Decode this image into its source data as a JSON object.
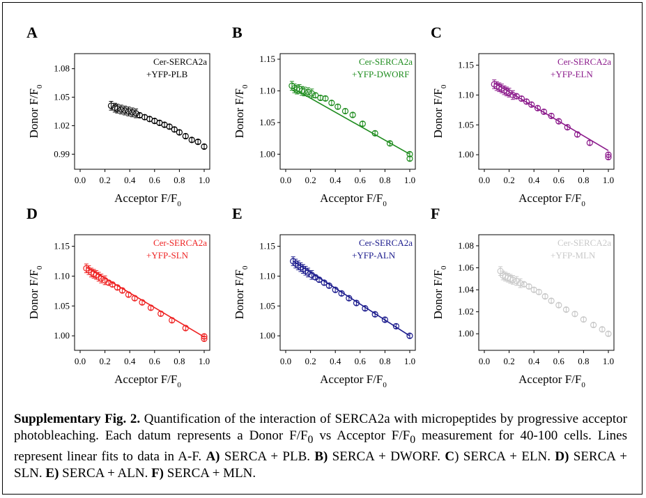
{
  "figure": {
    "caption": {
      "label": "Supplementary Fig. 2.",
      "text": " Quantification of the interaction of SERCA2a with micropeptides by progressive acceptor photobleaching. Each datum represents a Donor F/F",
      "sub0": "0",
      "text2": " vs Acceptor F/F",
      "sub1": "0",
      "text3": " measurement for 40-100 cells. Lines represent linear fits to data in A-F. ",
      "parts": [
        {
          "label": "A)",
          "text": " SERCA + PLB. "
        },
        {
          "label": "B)",
          "text": " SERCA + DWORF. "
        },
        {
          "label": "C",
          "text": ") SERCA + ELN. "
        },
        {
          "label": "D)",
          "text": " SERCA + SLN. "
        },
        {
          "label": "E)",
          "text": " SERCA + ALN. "
        },
        {
          "label": "F)",
          "text": " SERCA + MLN."
        }
      ]
    }
  },
  "chart_data": [
    {
      "panel": "A",
      "type": "scatter",
      "color": "#000000",
      "fit": false,
      "legend": [
        "Cer-SERCA2a",
        "+YFP-PLB"
      ],
      "xlabel": "Acceptor F/F",
      "xlabel_sub": "0",
      "ylabel": "Donor F/F",
      "ylabel_sub": "0",
      "xlim": [
        0.0,
        1.0
      ],
      "ylim": [
        0.98,
        1.09
      ],
      "xticks": [
        "0.0",
        "0.2",
        "0.4",
        "0.6",
        "0.8",
        "1.0"
      ],
      "yticks": [
        "0.99",
        "1.02",
        "1.05",
        "1.08"
      ],
      "ytick_values": [
        0.99,
        1.02,
        1.05,
        1.08
      ],
      "points": {
        "x": [
          0.25,
          0.28,
          0.3,
          0.33,
          0.36,
          0.39,
          0.42,
          0.45,
          0.48,
          0.52,
          0.56,
          0.6,
          0.64,
          0.68,
          0.72,
          0.76,
          0.8,
          0.85,
          0.9,
          0.95,
          1.0
        ],
        "y": [
          1.041,
          1.039,
          1.038,
          1.037,
          1.036,
          1.035,
          1.034,
          1.033,
          1.031,
          1.029,
          1.027,
          1.025,
          1.023,
          1.021,
          1.019,
          1.016,
          1.013,
          1.009,
          1.005,
          1.003,
          0.998
        ]
      }
    },
    {
      "panel": "B",
      "type": "scatter",
      "color": "#1e8c1e",
      "fit": true,
      "legend": [
        "Cer-SERCA2a",
        "+YFP-DWORF"
      ],
      "xlabel": "Acceptor F/F",
      "xlabel_sub": "0",
      "ylabel": "Donor F/F",
      "ylabel_sub": "0",
      "xlim": [
        0.0,
        1.0
      ],
      "ylim": [
        0.985,
        1.15
      ],
      "xticks": [
        "0.0",
        "0.2",
        "0.4",
        "0.6",
        "0.8",
        "1.0"
      ],
      "yticks": [
        "1.00",
        "1.05",
        "1.10",
        "1.15"
      ],
      "ytick_values": [
        1.0,
        1.05,
        1.1,
        1.15
      ],
      "fit_line": {
        "x": [
          0.05,
          1.0
        ],
        "y": [
          1.105,
          1.0
        ]
      },
      "points": {
        "x": [
          0.05,
          0.07,
          0.09,
          0.11,
          0.13,
          0.15,
          0.18,
          0.21,
          0.24,
          0.28,
          0.32,
          0.37,
          0.42,
          0.48,
          0.54,
          0.62,
          0.72,
          0.84,
          1.0,
          1.0
        ],
        "y": [
          1.108,
          1.104,
          1.102,
          1.103,
          1.1,
          1.099,
          1.098,
          1.096,
          1.093,
          1.089,
          1.088,
          1.081,
          1.075,
          1.068,
          1.062,
          1.048,
          1.033,
          1.017,
          1.0,
          0.993
        ]
      }
    },
    {
      "panel": "C",
      "type": "scatter",
      "color": "#8b1a8b",
      "fit": true,
      "legend": [
        "Cer-SERCA2a",
        "+YFP-ELN"
      ],
      "xlabel": "Acceptor F/F",
      "xlabel_sub": "0",
      "ylabel": "Donor F/F",
      "ylabel_sub": "0",
      "xlim": [
        0.0,
        1.0
      ],
      "ylim": [
        0.985,
        1.16
      ],
      "xticks": [
        "0.0",
        "0.2",
        "0.4",
        "0.6",
        "0.8",
        "1.0"
      ],
      "yticks": [
        "1.00",
        "1.05",
        "1.10",
        "1.15"
      ],
      "ytick_values": [
        1.0,
        1.05,
        1.1,
        1.15
      ],
      "fit_line": {
        "x": [
          0.08,
          1.0
        ],
        "y": [
          1.12,
          1.007
        ]
      },
      "points": {
        "x": [
          0.08,
          0.1,
          0.12,
          0.14,
          0.16,
          0.18,
          0.2,
          0.23,
          0.26,
          0.3,
          0.34,
          0.38,
          0.43,
          0.48,
          0.54,
          0.6,
          0.67,
          0.75,
          0.85,
          1.0,
          1.0
        ],
        "y": [
          1.118,
          1.115,
          1.113,
          1.111,
          1.108,
          1.106,
          1.104,
          1.1,
          1.098,
          1.094,
          1.089,
          1.084,
          1.078,
          1.072,
          1.065,
          1.056,
          1.046,
          1.034,
          1.02,
          1.0,
          0.996
        ]
      }
    },
    {
      "panel": "D",
      "type": "scatter",
      "color": "#ee2222",
      "fit": true,
      "legend": [
        "Cer-SERCA2a",
        "+YFP-SLN"
      ],
      "xlabel": "Acceptor F/F",
      "xlabel_sub": "0",
      "ylabel": "Donor F/F",
      "ylabel_sub": "0",
      "xlim": [
        0.0,
        1.0
      ],
      "ylim": [
        0.985,
        1.16
      ],
      "xticks": [
        "0.0",
        "0.2",
        "0.4",
        "0.6",
        "0.8",
        "1.0"
      ],
      "yticks": [
        "1.00",
        "1.05",
        "1.10",
        "1.15"
      ],
      "ytick_values": [
        1.0,
        1.05,
        1.1,
        1.15
      ],
      "fit_line": {
        "x": [
          0.05,
          1.0
        ],
        "y": [
          1.115,
          0.998
        ]
      },
      "points": {
        "x": [
          0.05,
          0.07,
          0.09,
          0.11,
          0.13,
          0.15,
          0.17,
          0.2,
          0.23,
          0.26,
          0.3,
          0.34,
          0.39,
          0.44,
          0.5,
          0.57,
          0.65,
          0.74,
          0.85,
          1.0,
          1.0
        ],
        "y": [
          1.113,
          1.11,
          1.106,
          1.104,
          1.102,
          1.099,
          1.096,
          1.093,
          1.089,
          1.086,
          1.081,
          1.076,
          1.069,
          1.063,
          1.056,
          1.047,
          1.037,
          1.026,
          1.013,
          0.999,
          0.995
        ]
      }
    },
    {
      "panel": "E",
      "type": "scatter",
      "color": "#1a1a8c",
      "fit": true,
      "legend": [
        "Cer-SERCA2a",
        "+YFP-ALN"
      ],
      "xlabel": "Acceptor F/F",
      "xlabel_sub": "0",
      "ylabel": "Donor F/F",
      "ylabel_sub": "0",
      "xlim": [
        0.0,
        1.0
      ],
      "ylim": [
        0.985,
        1.16
      ],
      "xticks": [
        "0.0",
        "0.2",
        "0.4",
        "0.6",
        "0.8",
        "1.0"
      ],
      "yticks": [
        "1.00",
        "1.05",
        "1.10",
        "1.15"
      ],
      "ytick_values": [
        1.0,
        1.05,
        1.1,
        1.15
      ],
      "fit_line": {
        "x": [
          0.06,
          1.0
        ],
        "y": [
          1.125,
          1.0
        ]
      },
      "points": {
        "x": [
          0.06,
          0.08,
          0.1,
          0.12,
          0.14,
          0.16,
          0.18,
          0.21,
          0.24,
          0.27,
          0.31,
          0.35,
          0.4,
          0.45,
          0.51,
          0.57,
          0.64,
          0.72,
          0.8,
          0.89,
          1.0
        ],
        "y": [
          1.125,
          1.121,
          1.118,
          1.115,
          1.112,
          1.109,
          1.106,
          1.102,
          1.098,
          1.094,
          1.089,
          1.084,
          1.077,
          1.071,
          1.063,
          1.055,
          1.046,
          1.036,
          1.027,
          1.016,
          1.0
        ]
      }
    },
    {
      "panel": "F",
      "type": "scatter",
      "color": "#c8c8c8",
      "fit": false,
      "legend": [
        "Cer-SERCA2a",
        "+YFP-MLN"
      ],
      "xlabel": "Acceptor F/F",
      "xlabel_sub": "0",
      "ylabel": "Donor F/F",
      "ylabel_sub": "0",
      "xlim": [
        0.0,
        1.0
      ],
      "ylim": [
        0.99,
        1.085
      ],
      "xticks": [
        "0.0",
        "0.2",
        "0.4",
        "0.6",
        "0.8",
        "1.0"
      ],
      "yticks": [
        "1.00",
        "1.02",
        "1.04",
        "1.06",
        "1.08"
      ],
      "ytick_values": [
        1.0,
        1.02,
        1.04,
        1.06,
        1.08
      ],
      "points": {
        "x": [
          0.13,
          0.15,
          0.17,
          0.19,
          0.21,
          0.23,
          0.26,
          0.29,
          0.32,
          0.36,
          0.4,
          0.44,
          0.49,
          0.54,
          0.6,
          0.66,
          0.73,
          0.8,
          0.88,
          0.95,
          1.0
        ],
        "y": [
          1.057,
          1.053,
          1.052,
          1.051,
          1.05,
          1.049,
          1.048,
          1.046,
          1.045,
          1.043,
          1.04,
          1.038,
          1.034,
          1.03,
          1.026,
          1.022,
          1.018,
          1.013,
          1.008,
          1.004,
          1.0
        ]
      }
    }
  ]
}
